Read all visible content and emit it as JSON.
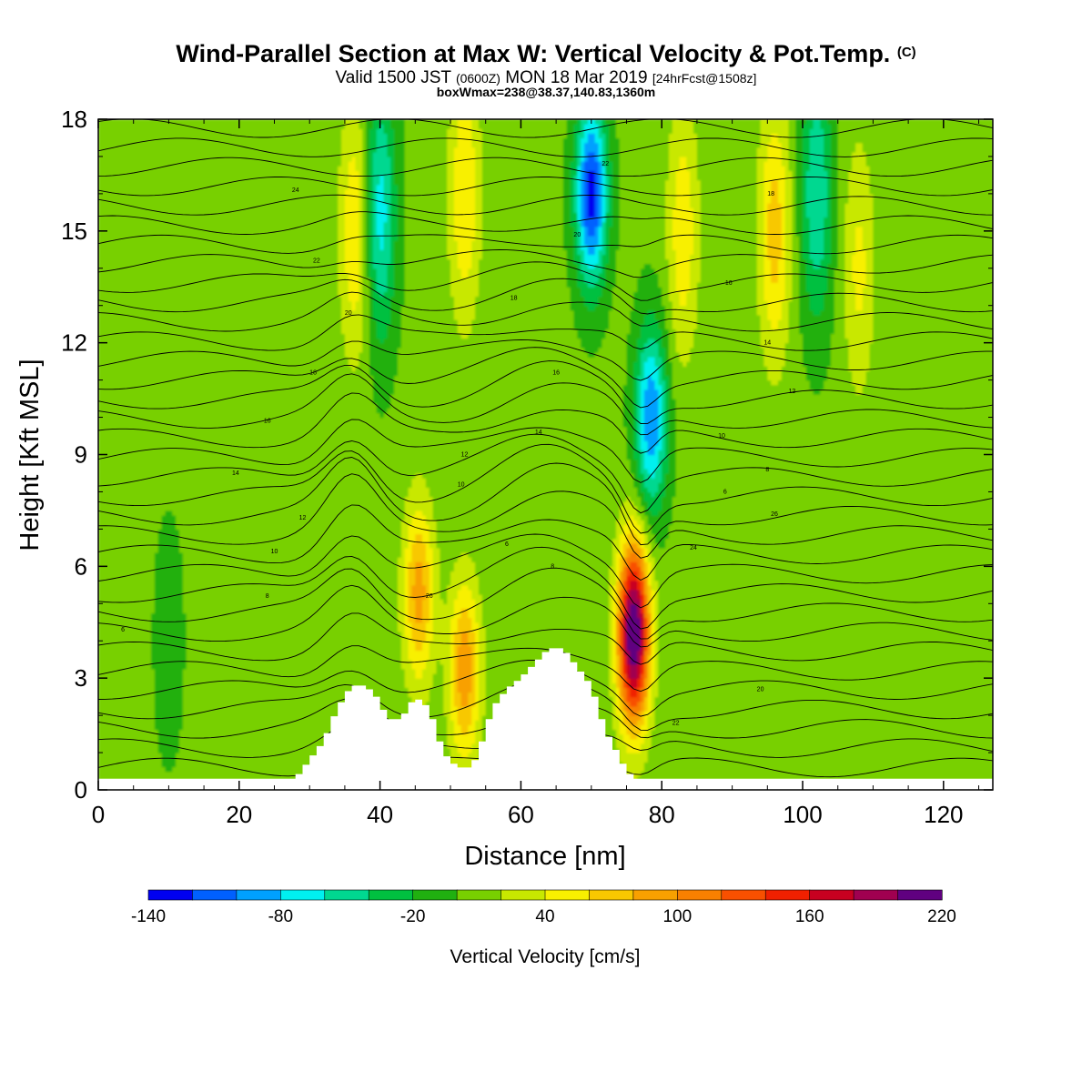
{
  "title": {
    "main": "Wind-Parallel Section at Max W: Vertical Velocity & Pot.Temp.",
    "copyright": "(C)",
    "valid_prefix": "Valid 1500 JST",
    "valid_z": "(0600Z)",
    "valid_date": "MON 18 Mar 2019",
    "fcst": "[24hrFcst@1508z]",
    "box": "boxWmax=238@38.37,140.83,1360m"
  },
  "chart_data": {
    "type": "heatmap",
    "xlabel": "Distance [nm]",
    "ylabel": "Height [Kft MSL]",
    "xlim": [
      0,
      127
    ],
    "ylim": [
      0,
      18
    ],
    "x_ticks": [
      0,
      20,
      40,
      60,
      80,
      100,
      120
    ],
    "y_ticks": [
      0,
      3,
      6,
      9,
      12,
      15,
      18
    ],
    "colorbar": {
      "title": "Vertical Velocity [cm/s]",
      "tick_labels": [
        "-140",
        "-80",
        "-20",
        "40",
        "100",
        "160",
        "220"
      ],
      "levels": [
        -140,
        -120,
        -100,
        -80,
        -60,
        -40,
        -20,
        0,
        20,
        40,
        60,
        80,
        100,
        120,
        140,
        160,
        180,
        200,
        220
      ],
      "colors": [
        "#0000f0",
        "#0060ff",
        "#00a0ff",
        "#00f0f0",
        "#00d890",
        "#00c040",
        "#20b010",
        "#78d000",
        "#c8e800",
        "#f8f000",
        "#f8c800",
        "#f8a000",
        "#f88000",
        "#f85000",
        "#f02000",
        "#c80020",
        "#a00050",
        "#600080"
      ]
    },
    "background_w": 5,
    "features": [
      {
        "name": "downdraft-west",
        "x": 10,
        "z": 4,
        "w": -10
      },
      {
        "name": "updraft-40",
        "x": 45.5,
        "z": 5.3,
        "w": 90
      },
      {
        "name": "updraft-52",
        "x": 52,
        "z": 3.2,
        "w": 95
      },
      {
        "name": "updraft-76",
        "x": 76,
        "z": 4.2,
        "w": 230
      },
      {
        "name": "downdraft-78",
        "x": 78.5,
        "z": 10,
        "w": -100
      },
      {
        "name": "downdraft-70",
        "x": 70,
        "z": 16,
        "w": -130
      },
      {
        "name": "downdraft-40",
        "x": 40,
        "z": 15.5,
        "w": -70
      },
      {
        "name": "updraft-37",
        "x": 36.5,
        "z": 15,
        "w": 60
      },
      {
        "name": "updraft-52-upper",
        "x": 52,
        "z": 16,
        "w": 60
      },
      {
        "name": "updraft-83",
        "x": 83,
        "z": 15,
        "w": 55
      },
      {
        "name": "updraft-96",
        "x": 96,
        "z": 15,
        "w": 70
      },
      {
        "name": "updraft-108",
        "x": 108,
        "z": 14,
        "w": 45
      },
      {
        "name": "downdraft-101",
        "x": 102,
        "z": 16,
        "w": -60
      }
    ],
    "terrain": [
      [
        27,
        0
      ],
      [
        28,
        0.3
      ],
      [
        30,
        0.8
      ],
      [
        32,
        1.3
      ],
      [
        34,
        2.2
      ],
      [
        36,
        2.8
      ],
      [
        38,
        2.8
      ],
      [
        40,
        2.4
      ],
      [
        41,
        1.9
      ],
      [
        43,
        1.9
      ],
      [
        45,
        2.5
      ],
      [
        47,
        2.2
      ],
      [
        49,
        1.0
      ],
      [
        51,
        0.6
      ],
      [
        53,
        0.6
      ],
      [
        54,
        1.0
      ],
      [
        56,
        2.2
      ],
      [
        58,
        2.7
      ],
      [
        60,
        3.0
      ],
      [
        62,
        3.4
      ],
      [
        64,
        3.8
      ],
      [
        66,
        3.8
      ],
      [
        68,
        3.3
      ],
      [
        70,
        2.8
      ],
      [
        72,
        1.6
      ],
      [
        74,
        0.9
      ],
      [
        75,
        0.5
      ],
      [
        77,
        0.2
      ],
      [
        78,
        0
      ]
    ],
    "contour_labels": [
      "6",
      "8",
      "10",
      "12",
      "14",
      "16",
      "18",
      "20",
      "22",
      "24",
      "26"
    ]
  }
}
